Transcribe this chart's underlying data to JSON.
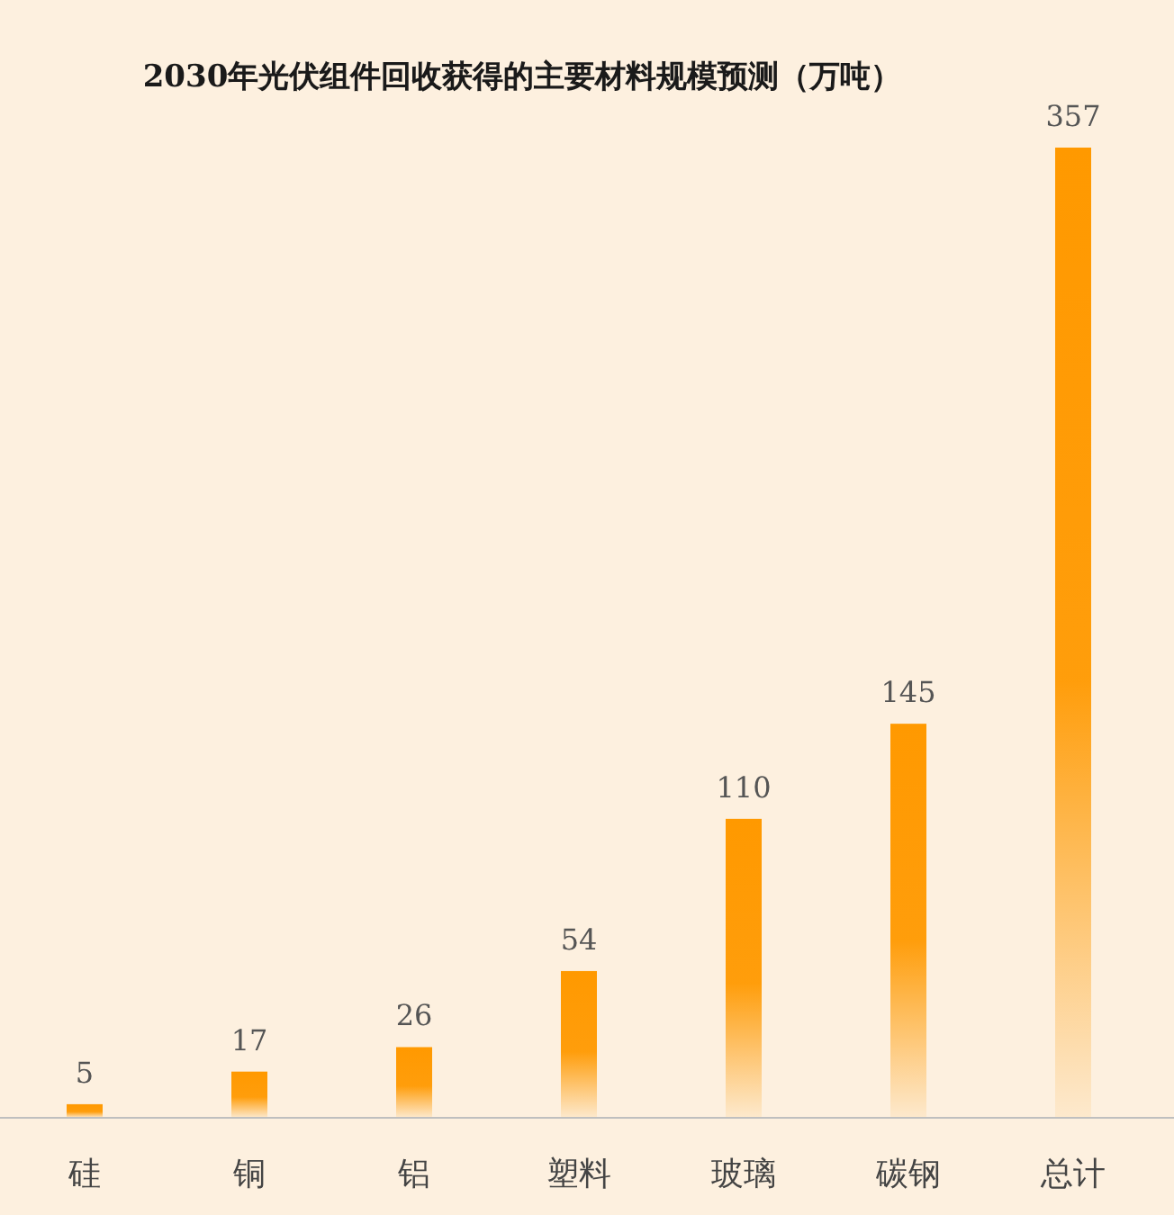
{
  "chart_data": {
    "type": "bar",
    "title": "2030年光伏组件回收获得的主要材料规模预测（万吨）",
    "categories": [
      "硅",
      "铜",
      "铝",
      "塑料",
      "玻璃",
      "碳钢",
      "总计"
    ],
    "values": [
      5,
      17,
      26,
      54,
      110,
      145,
      357
    ],
    "color": "#ff9900",
    "data_labels": true
  }
}
